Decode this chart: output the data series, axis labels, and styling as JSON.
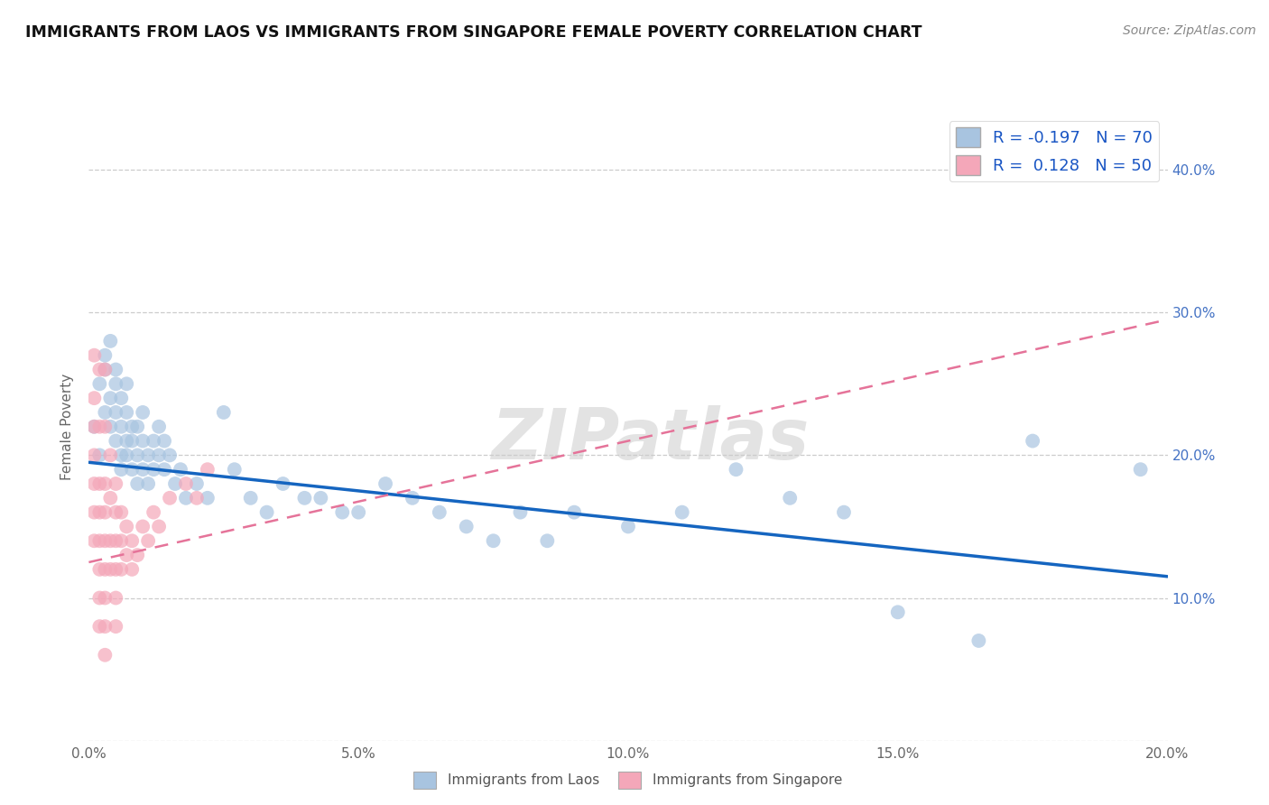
{
  "title": "IMMIGRANTS FROM LAOS VS IMMIGRANTS FROM SINGAPORE FEMALE POVERTY CORRELATION CHART",
  "source": "Source: ZipAtlas.com",
  "xlabel_laos": "Immigrants from Laos",
  "xlabel_singapore": "Immigrants from Singapore",
  "ylabel": "Female Poverty",
  "xlim": [
    0.0,
    0.2
  ],
  "ylim": [
    0.0,
    0.44
  ],
  "xticks": [
    0.0,
    0.05,
    0.1,
    0.15,
    0.2
  ],
  "xtick_labels": [
    "0.0%",
    "5.0%",
    "10.0%",
    "15.0%",
    "20.0%"
  ],
  "yticks": [
    0.0,
    0.1,
    0.2,
    0.3,
    0.4
  ],
  "ytick_labels_right": [
    "",
    "10.0%",
    "20.0%",
    "30.0%",
    "40.0%"
  ],
  "laos_R": -0.197,
  "laos_N": 70,
  "singapore_R": 0.128,
  "singapore_N": 50,
  "laos_color": "#a8c4e0",
  "singapore_color": "#f4a7b9",
  "laos_line_color": "#1565C0",
  "singapore_line_color": "#e57399",
  "watermark": "ZIPatlas",
  "background_color": "#ffffff",
  "grid_color": "#cccccc",
  "laos_line_y0": 0.195,
  "laos_line_y1": 0.115,
  "singapore_line_y0": 0.125,
  "singapore_line_y1": 0.295,
  "laos_x": [
    0.001,
    0.002,
    0.002,
    0.003,
    0.003,
    0.003,
    0.004,
    0.004,
    0.004,
    0.005,
    0.005,
    0.005,
    0.005,
    0.006,
    0.006,
    0.006,
    0.006,
    0.007,
    0.007,
    0.007,
    0.007,
    0.008,
    0.008,
    0.008,
    0.009,
    0.009,
    0.009,
    0.01,
    0.01,
    0.01,
    0.011,
    0.011,
    0.012,
    0.012,
    0.013,
    0.013,
    0.014,
    0.014,
    0.015,
    0.016,
    0.017,
    0.018,
    0.02,
    0.022,
    0.025,
    0.027,
    0.03,
    0.033,
    0.036,
    0.04,
    0.043,
    0.047,
    0.05,
    0.055,
    0.06,
    0.065,
    0.07,
    0.075,
    0.08,
    0.085,
    0.09,
    0.1,
    0.11,
    0.12,
    0.13,
    0.14,
    0.15,
    0.165,
    0.175,
    0.195
  ],
  "laos_y": [
    0.22,
    0.25,
    0.2,
    0.26,
    0.23,
    0.27,
    0.24,
    0.28,
    0.22,
    0.25,
    0.21,
    0.23,
    0.26,
    0.22,
    0.2,
    0.24,
    0.19,
    0.21,
    0.23,
    0.2,
    0.25,
    0.22,
    0.19,
    0.21,
    0.2,
    0.22,
    0.18,
    0.21,
    0.19,
    0.23,
    0.2,
    0.18,
    0.21,
    0.19,
    0.2,
    0.22,
    0.19,
    0.21,
    0.2,
    0.18,
    0.19,
    0.17,
    0.18,
    0.17,
    0.23,
    0.19,
    0.17,
    0.16,
    0.18,
    0.17,
    0.17,
    0.16,
    0.16,
    0.18,
    0.17,
    0.16,
    0.15,
    0.14,
    0.16,
    0.14,
    0.16,
    0.15,
    0.16,
    0.19,
    0.17,
    0.16,
    0.09,
    0.07,
    0.21,
    0.19
  ],
  "singapore_x": [
    0.001,
    0.001,
    0.001,
    0.001,
    0.001,
    0.001,
    0.001,
    0.002,
    0.002,
    0.002,
    0.002,
    0.002,
    0.002,
    0.002,
    0.002,
    0.003,
    0.003,
    0.003,
    0.003,
    0.003,
    0.003,
    0.003,
    0.003,
    0.003,
    0.004,
    0.004,
    0.004,
    0.004,
    0.005,
    0.005,
    0.005,
    0.005,
    0.005,
    0.005,
    0.006,
    0.006,
    0.006,
    0.007,
    0.007,
    0.008,
    0.008,
    0.009,
    0.01,
    0.011,
    0.012,
    0.013,
    0.015,
    0.018,
    0.02,
    0.022
  ],
  "singapore_y": [
    0.27,
    0.24,
    0.22,
    0.2,
    0.18,
    0.16,
    0.14,
    0.26,
    0.22,
    0.18,
    0.16,
    0.14,
    0.12,
    0.1,
    0.08,
    0.26,
    0.22,
    0.18,
    0.16,
    0.14,
    0.12,
    0.1,
    0.08,
    0.06,
    0.2,
    0.17,
    0.14,
    0.12,
    0.18,
    0.16,
    0.14,
    0.12,
    0.1,
    0.08,
    0.16,
    0.14,
    0.12,
    0.15,
    0.13,
    0.14,
    0.12,
    0.13,
    0.15,
    0.14,
    0.16,
    0.15,
    0.17,
    0.18,
    0.17,
    0.19
  ]
}
